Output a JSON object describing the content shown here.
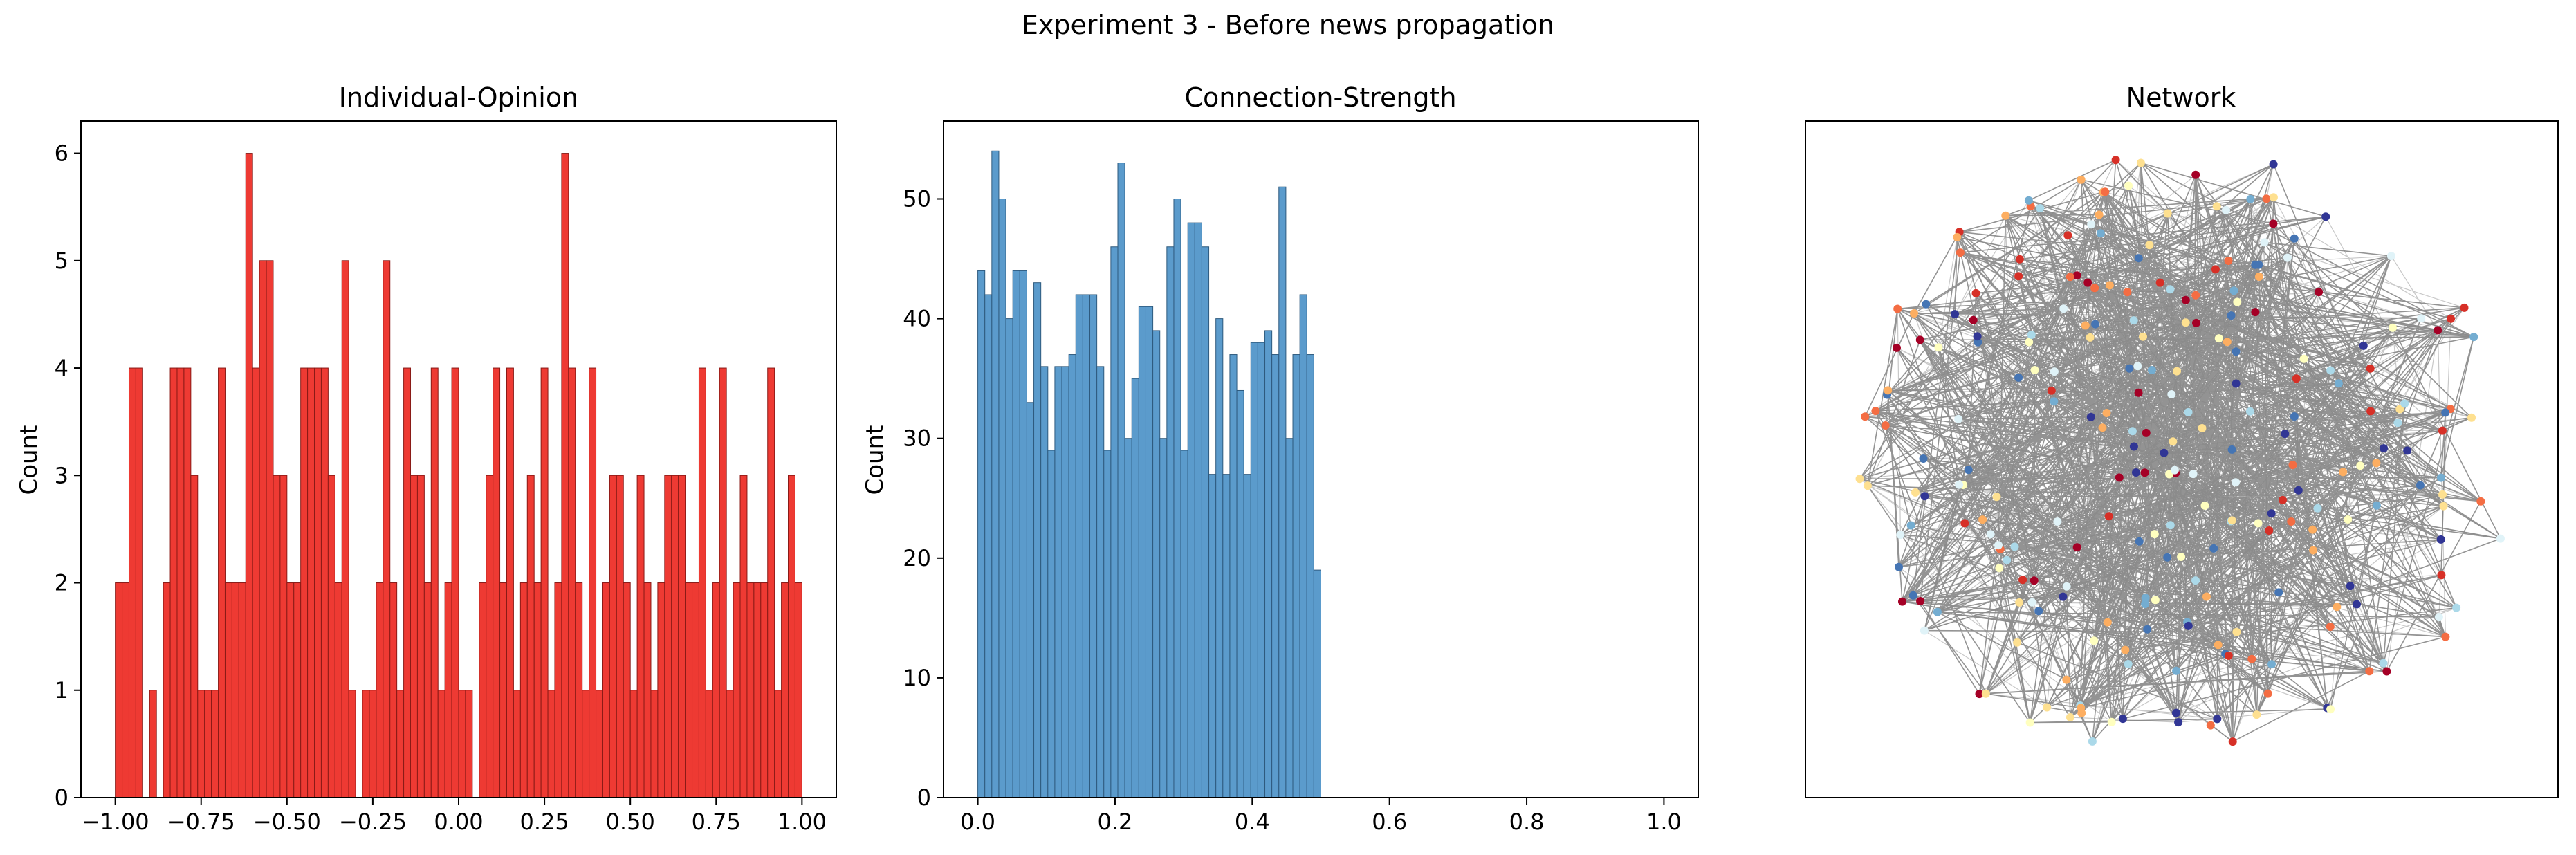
{
  "figure": {
    "title": "Experiment 3 - Before news propagation"
  },
  "chart_data": [
    {
      "type": "bar",
      "title": "Individual-Opinion",
      "xlabel": "",
      "ylabel": "Count",
      "xlim": [
        -1.1,
        1.1
      ],
      "ylim": [
        0,
        6.3
      ],
      "xticks": [
        "−1.00",
        "−0.75",
        "−0.50",
        "−0.25",
        "0.00",
        "0.25",
        "0.50",
        "0.75",
        "1.00"
      ],
      "yticks": [
        "0",
        "1",
        "2",
        "3",
        "4",
        "5",
        "6"
      ],
      "bin_range": [
        -1.0,
        1.0
      ],
      "bar_color": "#ee3a33",
      "edge_color": "#8a1a16",
      "values": [
        2,
        2,
        4,
        4,
        0,
        1,
        0,
        2,
        4,
        4,
        4,
        3,
        1,
        1,
        1,
        4,
        2,
        2,
        2,
        6,
        4,
        5,
        5,
        3,
        3,
        2,
        2,
        4,
        4,
        4,
        4,
        3,
        2,
        5,
        1,
        0,
        1,
        1,
        2,
        5,
        2,
        1,
        4,
        3,
        3,
        2,
        4,
        1,
        2,
        4,
        1,
        1,
        0,
        2,
        3,
        4,
        2,
        4,
        1,
        2,
        3,
        2,
        4,
        1,
        2,
        6,
        4,
        2,
        1,
        4,
        1,
        2,
        3,
        3,
        2,
        1,
        3,
        2,
        1,
        2,
        3,
        3,
        3,
        2,
        2,
        4,
        1,
        2,
        4,
        1,
        2,
        3,
        2,
        2,
        2,
        4,
        1,
        2,
        3,
        2
      ]
    },
    {
      "type": "bar",
      "title": "Connection-Strength",
      "xlabel": "",
      "ylabel": "Count",
      "xlim": [
        -0.05,
        1.05
      ],
      "ylim": [
        0,
        56.5
      ],
      "xticks": [
        "0.0",
        "0.2",
        "0.4",
        "0.6",
        "0.8",
        "1.0"
      ],
      "yticks": [
        "0",
        "10",
        "20",
        "30",
        "40",
        "50"
      ],
      "bin_range": [
        0.0,
        0.5
      ],
      "bar_color": "#5b9bcc",
      "edge_color": "#2e5a7e",
      "values": [
        44,
        42,
        54,
        50,
        40,
        44,
        44,
        33,
        43,
        36,
        29,
        36,
        36,
        37,
        42,
        42,
        42,
        36,
        29,
        46,
        53,
        30,
        35,
        41,
        41,
        39,
        30,
        46,
        50,
        29,
        48,
        48,
        46,
        27,
        40,
        27,
        37,
        34,
        27,
        38,
        38,
        39,
        37,
        51,
        30,
        37,
        42,
        37,
        19
      ]
    },
    {
      "type": "network",
      "title": "Network",
      "node_palette": [
        "#a50026",
        "#d73027",
        "#f46d43",
        "#fdae61",
        "#fee090",
        "#ffffbf",
        "#e0f3f8",
        "#abd9e9",
        "#74add1",
        "#4575b4",
        "#313695"
      ],
      "edge_color": "#808080"
    }
  ]
}
